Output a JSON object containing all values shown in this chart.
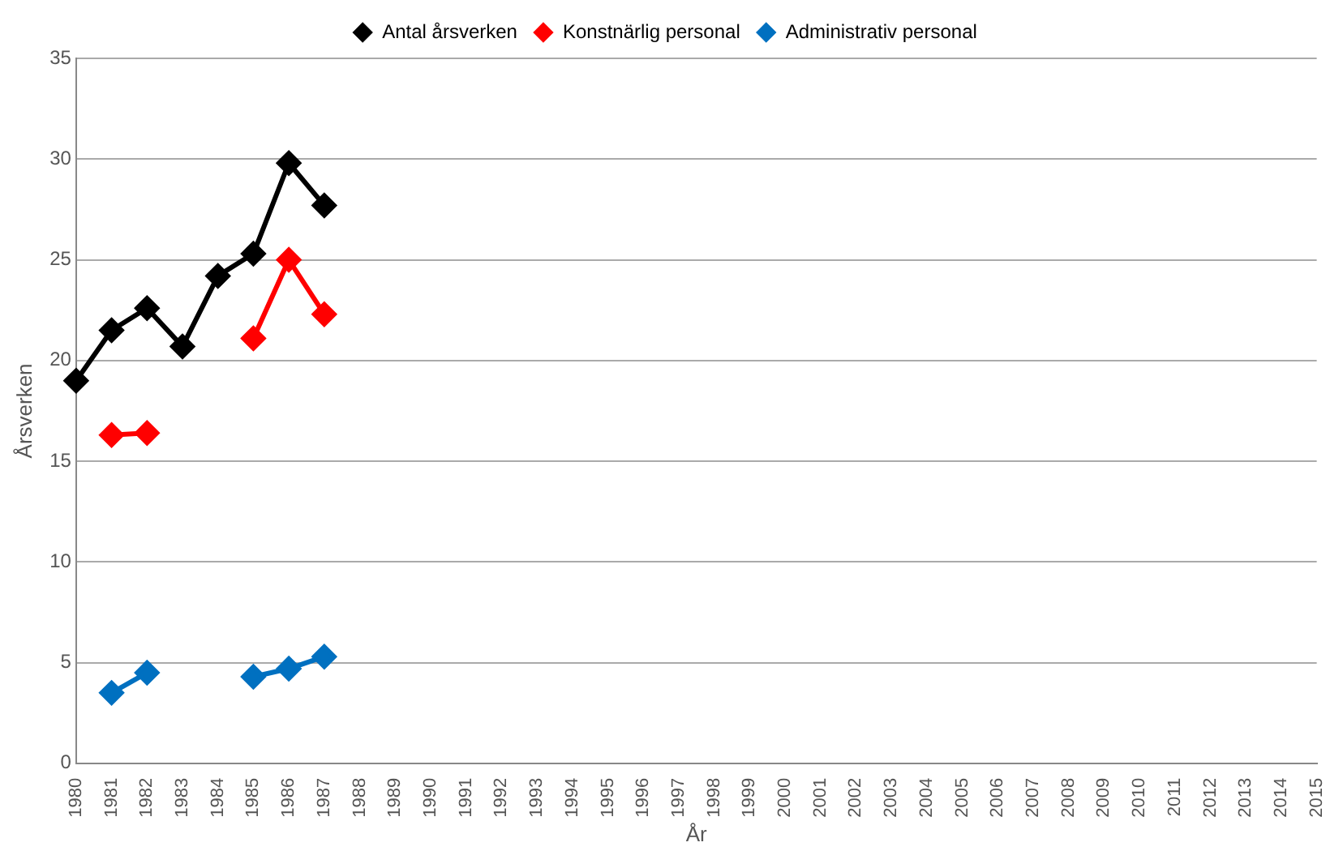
{
  "chart_data": {
    "type": "line",
    "xlabel": "År",
    "ylabel": "Årsverken",
    "categories": [
      "1980",
      "1981",
      "1982",
      "1983",
      "1984",
      "1985",
      "1986",
      "1987",
      "1988",
      "1989",
      "1990",
      "1991",
      "1992",
      "1993",
      "1994",
      "1995",
      "1996",
      "1997",
      "1998",
      "1999",
      "2000",
      "2001",
      "2002",
      "2003",
      "2004",
      "2005",
      "2006",
      "2007",
      "2008",
      "2009",
      "2010",
      "2011",
      "2012",
      "2013",
      "2014",
      "2015"
    ],
    "series": [
      {
        "name": "Antal årsverken",
        "color": "#000000",
        "values": [
          19.0,
          21.5,
          22.6,
          20.7,
          24.2,
          25.3,
          29.8,
          27.7,
          null,
          null,
          null,
          null,
          null,
          null,
          null,
          null,
          null,
          null,
          null,
          null,
          null,
          null,
          null,
          null,
          null,
          null,
          null,
          null,
          null,
          null,
          null,
          null,
          null,
          null,
          null,
          null
        ]
      },
      {
        "name": "Konstnärlig personal",
        "color": "#ff0000",
        "values": [
          null,
          16.3,
          16.4,
          null,
          null,
          21.1,
          25.0,
          22.3,
          null,
          null,
          null,
          null,
          null,
          null,
          null,
          null,
          null,
          null,
          null,
          null,
          null,
          null,
          null,
          null,
          null,
          null,
          null,
          null,
          null,
          null,
          null,
          null,
          null,
          null,
          null,
          null
        ]
      },
      {
        "name": "Administrativ personal",
        "color": "#0070c0",
        "values": [
          null,
          3.5,
          4.5,
          null,
          null,
          4.3,
          4.7,
          5.3,
          null,
          null,
          null,
          null,
          null,
          null,
          null,
          null,
          null,
          null,
          null,
          null,
          null,
          null,
          null,
          null,
          null,
          null,
          null,
          null,
          null,
          null,
          null,
          null,
          null,
          null,
          null,
          null
        ]
      }
    ],
    "ylim": [
      0,
      35
    ],
    "yticks": [
      0,
      5,
      10,
      15,
      20,
      25,
      30,
      35
    ],
    "grid": "y",
    "legend": "top",
    "marker": "diamond",
    "line_style": "solid"
  }
}
